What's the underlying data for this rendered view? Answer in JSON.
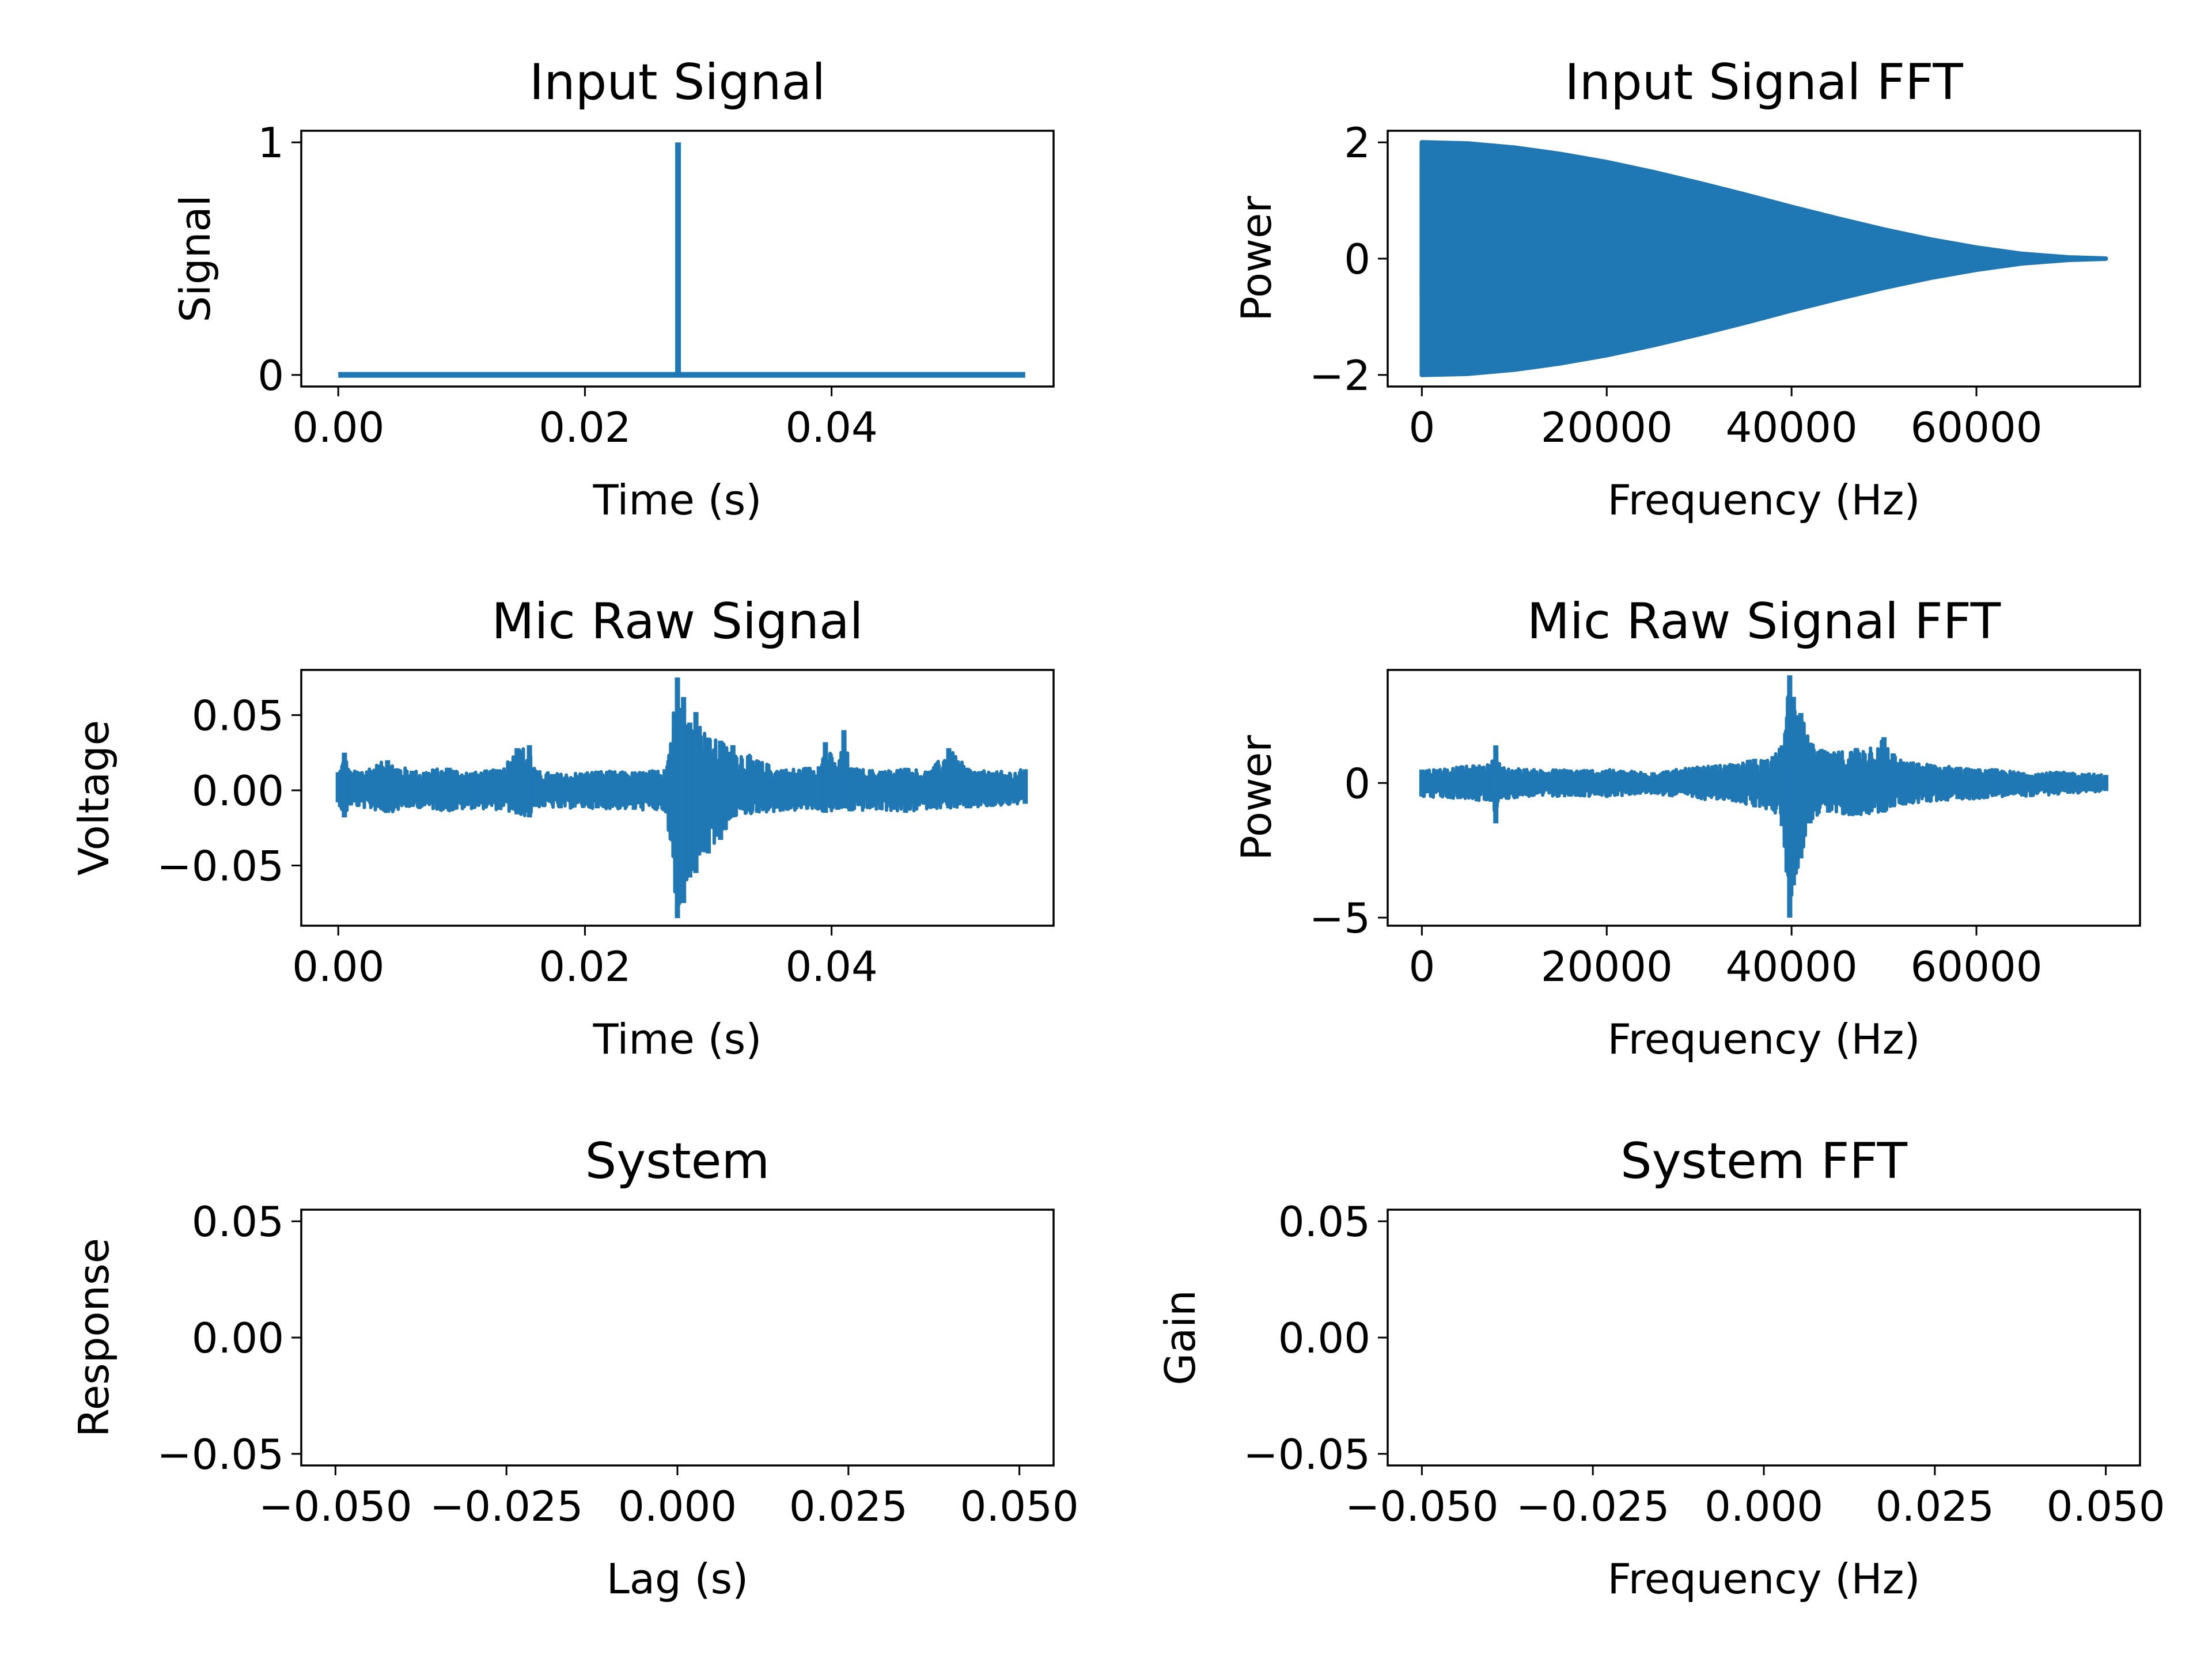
{
  "colors": {
    "series": "#1f77b4",
    "axes": "#000000",
    "background": "#ffffff"
  },
  "chart_data": [
    {
      "id": "input-signal",
      "type": "line",
      "title": "Input Signal",
      "xlabel": "Time (s)",
      "ylabel": "Signal",
      "xlim": [
        -0.003,
        0.058
      ],
      "ylim": [
        -0.05,
        1.05
      ],
      "xticks": [
        0.0,
        0.02,
        0.04
      ],
      "xticklabels": [
        "0.00",
        "0.02",
        "0.04"
      ],
      "yticks": [
        0,
        1
      ],
      "yticklabels": [
        "0",
        "1"
      ],
      "grid": false,
      "series": [
        {
          "kind": "impulse",
          "x": [
            0.0,
            0.02755,
            0.02755,
            0.02755,
            0.0557
          ],
          "y": [
            0,
            0,
            1,
            0,
            0
          ]
        }
      ]
    },
    {
      "id": "input-signal-fft",
      "type": "area",
      "title": "Input Signal FFT",
      "xlabel": "Frequency (Hz)",
      "ylabel": "Power",
      "xlim": [
        -3700,
        77700
      ],
      "ylim": [
        -2.2,
        2.2
      ],
      "xticks": [
        0,
        20000,
        40000,
        60000
      ],
      "xticklabels": [
        "0",
        "20000",
        "40000",
        "60000"
      ],
      "yticks": [
        -2,
        0,
        2
      ],
      "yticklabels": [
        "−2",
        "0",
        "2"
      ],
      "grid": false,
      "series": [
        {
          "kind": "envelope",
          "x": [
            0,
            5000,
            10000,
            15000,
            20000,
            25000,
            30000,
            35000,
            40000,
            45000,
            50000,
            55000,
            60000,
            65000,
            70000,
            74000
          ],
          "upper": [
            2.0,
            1.98,
            1.91,
            1.8,
            1.66,
            1.49,
            1.3,
            1.1,
            0.89,
            0.69,
            0.5,
            0.33,
            0.19,
            0.08,
            0.02,
            0.0
          ],
          "lower": [
            -2.0,
            -1.98,
            -1.91,
            -1.8,
            -1.66,
            -1.49,
            -1.3,
            -1.1,
            -0.89,
            -0.69,
            -0.5,
            -0.33,
            -0.19,
            -0.08,
            -0.02,
            0.0
          ]
        }
      ]
    },
    {
      "id": "mic-raw-signal",
      "type": "line",
      "title": "Mic Raw Signal",
      "xlabel": "Time (s)",
      "ylabel": "Voltage",
      "xlim": [
        -0.003,
        0.058
      ],
      "ylim": [
        -0.09,
        0.08
      ],
      "xticks": [
        0.0,
        0.02,
        0.04
      ],
      "xticklabels": [
        "0.00",
        "0.02",
        "0.04"
      ],
      "yticks": [
        -0.05,
        0.0,
        0.05
      ],
      "yticklabels": [
        "−0.05",
        "0.00",
        "0.05"
      ],
      "grid": false,
      "series": [
        {
          "kind": "noise-envelope",
          "x": [
            0.0,
            0.0005,
            0.001,
            0.004,
            0.006,
            0.009,
            0.011,
            0.013,
            0.0145,
            0.0155,
            0.016,
            0.018,
            0.021,
            0.024,
            0.0265,
            0.0275,
            0.028,
            0.0285,
            0.029,
            0.03,
            0.031,
            0.032,
            0.034,
            0.036,
            0.039,
            0.0395,
            0.0405,
            0.041,
            0.0415,
            0.044,
            0.046,
            0.048,
            0.0495,
            0.051,
            0.053,
            0.0557
          ],
          "upper": [
            0.012,
            0.025,
            0.012,
            0.02,
            0.013,
            0.015,
            0.012,
            0.014,
            0.028,
            0.03,
            0.013,
            0.011,
            0.013,
            0.012,
            0.014,
            0.075,
            0.062,
            0.045,
            0.052,
            0.035,
            0.033,
            0.03,
            0.02,
            0.014,
            0.016,
            0.032,
            0.015,
            0.04,
            0.015,
            0.013,
            0.015,
            0.013,
            0.028,
            0.015,
            0.012,
            0.014
          ],
          "lower": [
            -0.008,
            -0.018,
            -0.01,
            -0.015,
            -0.011,
            -0.014,
            -0.012,
            -0.013,
            -0.016,
            -0.018,
            -0.011,
            -0.012,
            -0.012,
            -0.013,
            -0.014,
            -0.085,
            -0.075,
            -0.058,
            -0.055,
            -0.042,
            -0.033,
            -0.018,
            -0.015,
            -0.014,
            -0.013,
            -0.015,
            -0.013,
            -0.012,
            -0.014,
            -0.013,
            -0.015,
            -0.012,
            -0.012,
            -0.012,
            -0.011,
            -0.009
          ]
        }
      ]
    },
    {
      "id": "mic-raw-signal-fft",
      "type": "line",
      "title": "Mic Raw Signal FFT",
      "xlabel": "Frequency (Hz)",
      "ylabel": "Power",
      "xlim": [
        -3700,
        77700
      ],
      "ylim": [
        -5.3,
        4.2
      ],
      "xticks": [
        0,
        20000,
        40000,
        60000
      ],
      "xticklabels": [
        "0",
        "20000",
        "40000",
        "60000"
      ],
      "yticks": [
        -5,
        0
      ],
      "yticklabels": [
        "−5",
        "0"
      ],
      "grid": false,
      "series": [
        {
          "kind": "noise-envelope",
          "x": [
            0,
            4000,
            7500,
            8000,
            8500,
            12000,
            16000,
            20000,
            25000,
            30000,
            34000,
            36000,
            38000,
            39000,
            39800,
            40200,
            41000,
            42000,
            44000,
            47000,
            50000,
            51000,
            52000,
            55000,
            58000,
            60000,
            62000,
            65000,
            70000,
            74000
          ],
          "upper": [
            0.5,
            0.6,
            0.7,
            1.4,
            0.6,
            0.5,
            0.5,
            0.5,
            0.4,
            0.6,
            0.7,
            0.9,
            1.0,
            1.4,
            4.0,
            3.2,
            2.6,
            1.5,
            1.1,
            1.3,
            1.7,
            1.1,
            0.8,
            0.7,
            0.6,
            0.5,
            0.5,
            0.4,
            0.4,
            0.3
          ],
          "lower": [
            -0.5,
            -0.6,
            -0.7,
            -1.5,
            -0.6,
            -0.5,
            -0.5,
            -0.5,
            -0.4,
            -0.6,
            -0.7,
            -0.9,
            -1.0,
            -1.6,
            -5.0,
            -3.8,
            -2.8,
            -1.5,
            -1.1,
            -1.2,
            -1.1,
            -0.9,
            -0.8,
            -0.7,
            -0.6,
            -0.6,
            -0.5,
            -0.5,
            -0.4,
            -0.3
          ]
        }
      ]
    },
    {
      "id": "system",
      "type": "line",
      "title": "System",
      "xlabel": "Lag (s)",
      "ylabel": "Response",
      "xlim": [
        -0.055,
        0.055
      ],
      "ylim": [
        -0.055,
        0.055
      ],
      "xticks": [
        -0.05,
        -0.025,
        0.0,
        0.025,
        0.05
      ],
      "xticklabels": [
        "−0.050",
        "−0.025",
        "0.000",
        "0.025",
        "0.050"
      ],
      "yticks": [
        -0.05,
        0.0,
        0.05
      ],
      "yticklabels": [
        "−0.05",
        "0.00",
        "0.05"
      ],
      "grid": false,
      "series": []
    },
    {
      "id": "system-fft",
      "type": "line",
      "title": "System FFT",
      "xlabel": "Frequency (Hz)",
      "ylabel": "Gain",
      "xlim": [
        -0.055,
        0.055
      ],
      "ylim": [
        -0.055,
        0.055
      ],
      "xticks": [
        -0.05,
        -0.025,
        0.0,
        0.025,
        0.05
      ],
      "xticklabels": [
        "−0.050",
        "−0.025",
        "0.000",
        "0.025",
        "0.050"
      ],
      "yticks": [
        -0.05,
        0.0,
        0.05
      ],
      "yticklabels": [
        "−0.05",
        "0.00",
        "0.05"
      ],
      "grid": false,
      "series": []
    }
  ]
}
